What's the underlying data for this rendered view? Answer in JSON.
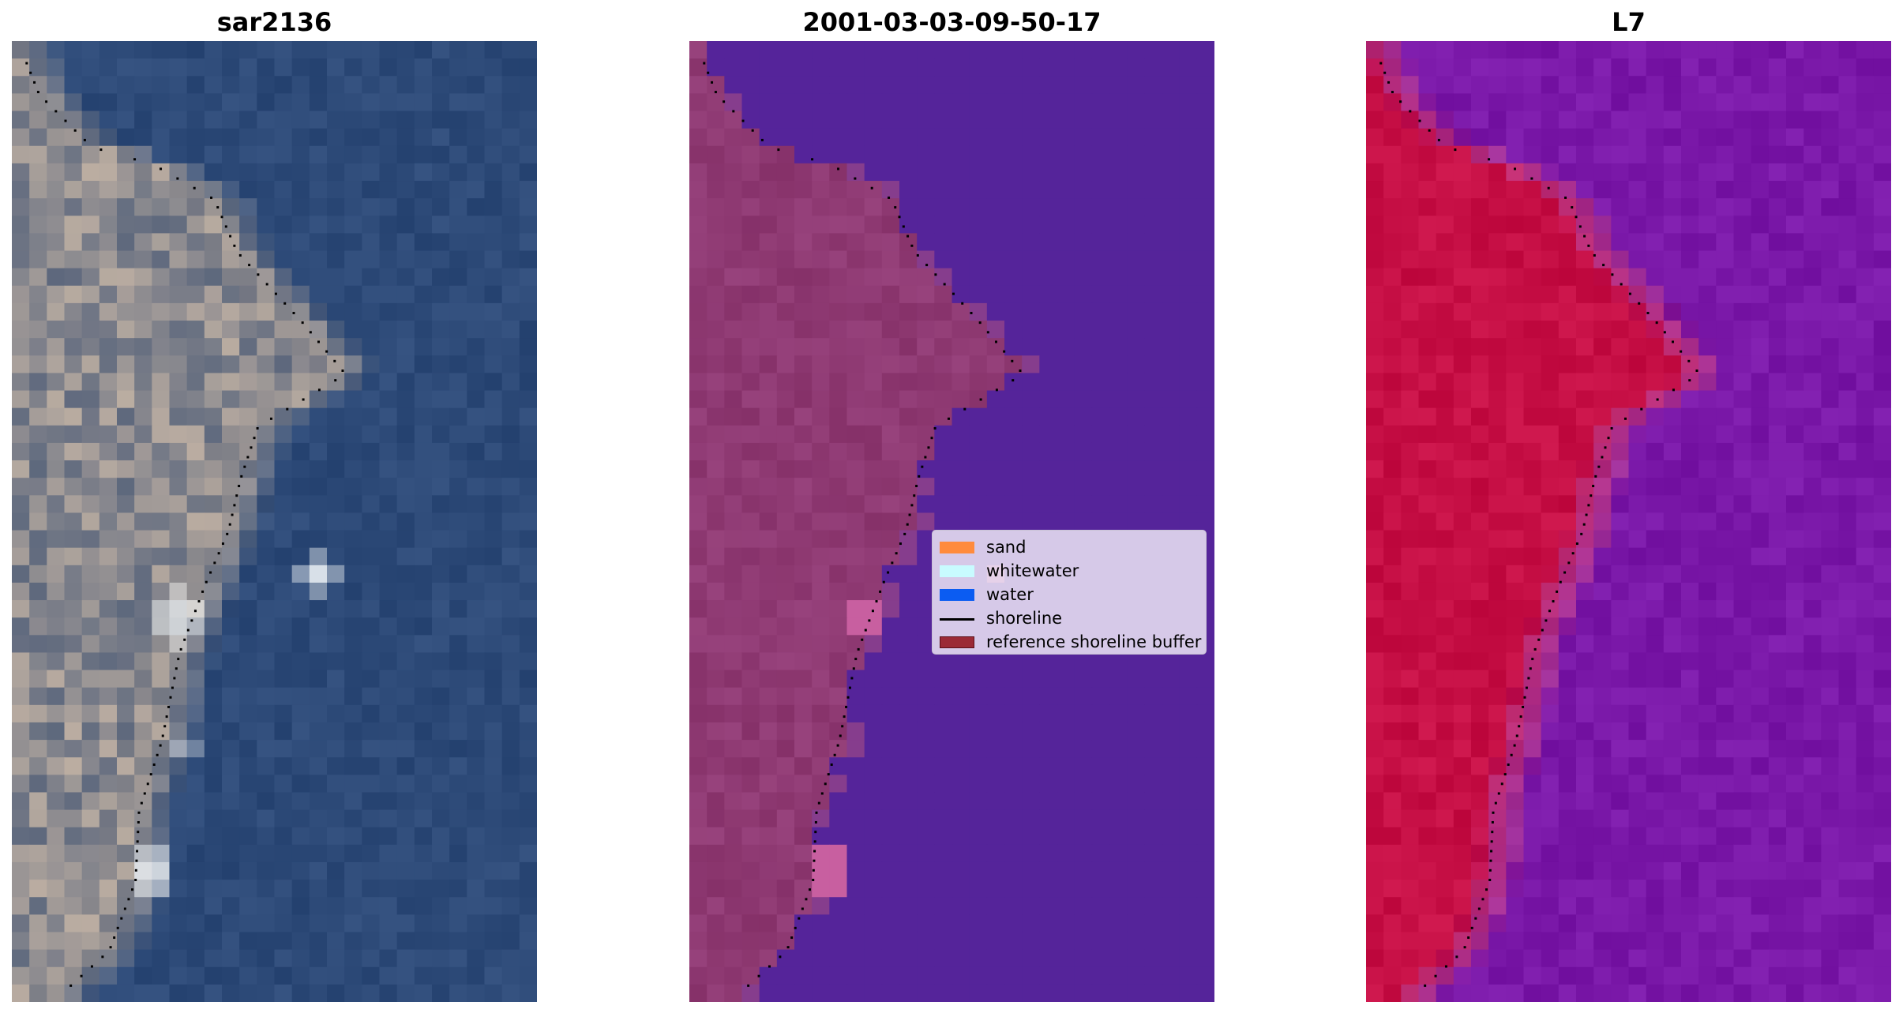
{
  "chart_data": [
    {
      "type": "image",
      "title": "sar2136",
      "grid": false
    },
    {
      "type": "image",
      "title": "2001-03-03-09-50-17",
      "grid": false,
      "legend": {
        "placement": "center-right",
        "entries": [
          {
            "label": "sand",
            "kind": "patch",
            "color": "#ff8b3d"
          },
          {
            "label": "whitewater",
            "kind": "patch",
            "color": "#c8fbff"
          },
          {
            "label": "water",
            "kind": "patch",
            "color": "#0b5cf2"
          },
          {
            "label": "shoreline",
            "kind": "line",
            "color": "#000000"
          },
          {
            "label": "reference shoreline buffer",
            "kind": "patch",
            "color": "#9b2a36"
          }
        ]
      }
    },
    {
      "type": "image",
      "title": "L7",
      "grid": false
    }
  ],
  "colors": {
    "rgb_water": "#2d4a78",
    "rgb_land": "#b9a99a",
    "class_background": "#55249a",
    "class_land": "#a04b86",
    "index_water": "#7a18a8",
    "index_land": "#c60f45",
    "shoreline": "#000000"
  }
}
